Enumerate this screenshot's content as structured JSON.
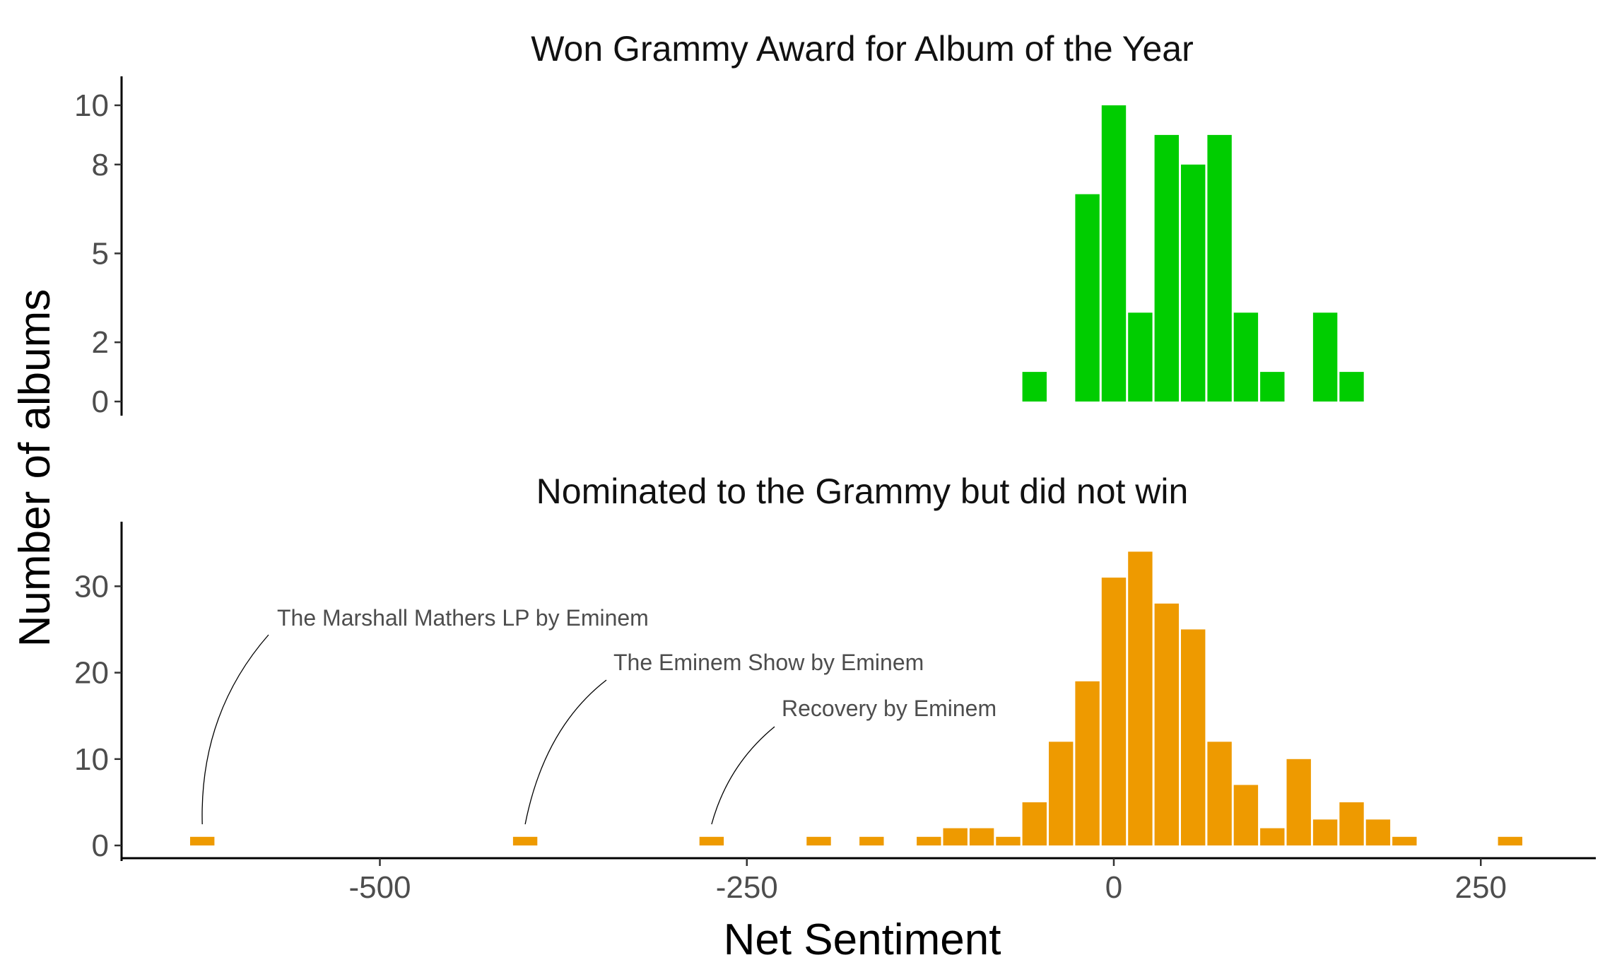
{
  "chart_data": {
    "type": "bar",
    "xlabel": "Net Sentiment",
    "ylabel": "Number of albums",
    "x_ticks": [
      -500,
      -250,
      0,
      250
    ],
    "xlim": [
      -680,
      320
    ],
    "bin_width": 18,
    "panels": [
      {
        "title": "Won Grammy Award for Album of the Year",
        "color": "#00CD00",
        "ylim": [
          0,
          10.5
        ],
        "y_ticks": [
          0,
          2,
          5,
          8,
          10
        ],
        "bars": [
          {
            "x": -54,
            "count": 1
          },
          {
            "x": -18,
            "count": 7
          },
          {
            "x": 0,
            "count": 10
          },
          {
            "x": 18,
            "count": 3
          },
          {
            "x": 36,
            "count": 9
          },
          {
            "x": 54,
            "count": 8
          },
          {
            "x": 72,
            "count": 9
          },
          {
            "x": 90,
            "count": 3
          },
          {
            "x": 108,
            "count": 1
          },
          {
            "x": 144,
            "count": 3
          },
          {
            "x": 162,
            "count": 1
          }
        ]
      },
      {
        "title": "Nominated to the Grammy but did not win",
        "color": "#EE9A00",
        "ylim": [
          0,
          36
        ],
        "y_ticks": [
          0,
          10,
          20,
          30
        ],
        "bars": [
          {
            "x": -621,
            "count": 1
          },
          {
            "x": -401,
            "count": 1
          },
          {
            "x": -274,
            "count": 1
          },
          {
            "x": -201,
            "count": 1
          },
          {
            "x": -165,
            "count": 1
          },
          {
            "x": -126,
            "count": 1
          },
          {
            "x": -108,
            "count": 2
          },
          {
            "x": -90,
            "count": 2
          },
          {
            "x": -72,
            "count": 1
          },
          {
            "x": -54,
            "count": 5
          },
          {
            "x": -36,
            "count": 12
          },
          {
            "x": -18,
            "count": 19
          },
          {
            "x": 0,
            "count": 31
          },
          {
            "x": 18,
            "count": 34
          },
          {
            "x": 36,
            "count": 28
          },
          {
            "x": 54,
            "count": 25
          },
          {
            "x": 72,
            "count": 12
          },
          {
            "x": 90,
            "count": 7
          },
          {
            "x": 108,
            "count": 2
          },
          {
            "x": 126,
            "count": 10
          },
          {
            "x": 144,
            "count": 3
          },
          {
            "x": 162,
            "count": 5
          },
          {
            "x": 180,
            "count": 3
          },
          {
            "x": 198,
            "count": 1
          },
          {
            "x": 270,
            "count": 1
          }
        ],
        "annotations": [
          {
            "text": "The Marshall Mathers LP by Eminem",
            "x": -621
          },
          {
            "text": "The Eminem Show by Eminem",
            "x": -401
          },
          {
            "text": "Recovery by Eminem",
            "x": -274
          }
        ]
      }
    ]
  }
}
